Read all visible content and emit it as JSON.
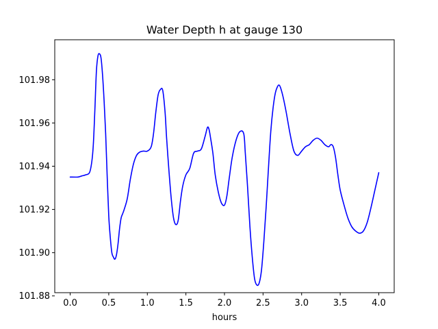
{
  "chart_data": {
    "type": "line",
    "title": "Water Depth h at gauge 130",
    "xlabel": "hours",
    "ylabel": "",
    "xlim": [
      -0.2,
      4.2
    ],
    "ylim": [
      101.8815,
      101.9985
    ],
    "grid": false,
    "legend": "none",
    "x_ticks": [
      0.0,
      0.5,
      1.0,
      1.5,
      2.0,
      2.5,
      3.0,
      3.5,
      4.0
    ],
    "x_tick_labels": [
      "0.0",
      "0.5",
      "1.0",
      "1.5",
      "2.0",
      "2.5",
      "3.0",
      "3.5",
      "4.0"
    ],
    "y_ticks": [
      101.88,
      101.9,
      101.92,
      101.94,
      101.96,
      101.98
    ],
    "y_tick_labels": [
      "101.88",
      "101.90",
      "101.92",
      "101.94",
      "101.96",
      "101.98"
    ],
    "series": [
      {
        "color": "#0000ff",
        "x": [
          0.0,
          0.1,
          0.15,
          0.2,
          0.25,
          0.28,
          0.3,
          0.32,
          0.34,
          0.36,
          0.38,
          0.4,
          0.42,
          0.44,
          0.46,
          0.48,
          0.5,
          0.52,
          0.54,
          0.56,
          0.58,
          0.6,
          0.62,
          0.64,
          0.66,
          0.68,
          0.7,
          0.74,
          0.78,
          0.82,
          0.86,
          0.9,
          0.95,
          1.0,
          1.05,
          1.08,
          1.11,
          1.14,
          1.17,
          1.2,
          1.23,
          1.25,
          1.28,
          1.31,
          1.34,
          1.37,
          1.4,
          1.43,
          1.46,
          1.5,
          1.55,
          1.6,
          1.65,
          1.7,
          1.75,
          1.78,
          1.8,
          1.82,
          1.85,
          1.88,
          1.92,
          1.96,
          2.0,
          2.03,
          2.06,
          2.1,
          2.15,
          2.2,
          2.25,
          2.27,
          2.3,
          2.33,
          2.36,
          2.39,
          2.42,
          2.45,
          2.48,
          2.51,
          2.54,
          2.57,
          2.6,
          2.63,
          2.66,
          2.69,
          2.71,
          2.73,
          2.76,
          2.8,
          2.85,
          2.9,
          2.95,
          3.0,
          3.05,
          3.1,
          3.15,
          3.2,
          3.25,
          3.3,
          3.35,
          3.38,
          3.41,
          3.44,
          3.47,
          3.5,
          3.55,
          3.6,
          3.65,
          3.7,
          3.75,
          3.8,
          3.85,
          3.9,
          3.95,
          4.0
        ],
        "y": [
          101.935,
          101.935,
          101.9355,
          101.936,
          101.937,
          101.942,
          101.95,
          101.966,
          101.984,
          101.991,
          101.992,
          101.99,
          101.982,
          101.97,
          101.955,
          101.935,
          101.917,
          101.907,
          101.9,
          101.898,
          101.897,
          101.899,
          101.904,
          101.911,
          101.916,
          101.918,
          101.92,
          101.925,
          101.934,
          101.941,
          101.945,
          101.9465,
          101.947,
          101.947,
          101.949,
          101.955,
          101.965,
          101.973,
          101.9755,
          101.975,
          101.965,
          101.953,
          101.938,
          101.925,
          101.916,
          101.913,
          101.915,
          101.924,
          101.931,
          101.936,
          101.939,
          101.946,
          101.947,
          101.948,
          101.954,
          101.958,
          101.957,
          101.953,
          101.946,
          101.936,
          101.928,
          101.923,
          101.922,
          101.926,
          101.934,
          101.944,
          101.952,
          101.956,
          101.955,
          101.946,
          101.93,
          101.912,
          101.898,
          101.888,
          101.885,
          101.886,
          101.892,
          101.905,
          101.921,
          101.939,
          101.956,
          101.967,
          101.974,
          101.977,
          101.9775,
          101.976,
          101.972,
          101.965,
          101.955,
          101.947,
          101.945,
          101.947,
          101.949,
          101.95,
          101.952,
          101.953,
          101.952,
          101.95,
          101.949,
          101.95,
          101.949,
          101.944,
          101.936,
          101.929,
          101.922,
          101.916,
          101.912,
          101.91,
          101.909,
          101.91,
          101.914,
          101.921,
          101.929,
          101.937
        ]
      }
    ]
  }
}
